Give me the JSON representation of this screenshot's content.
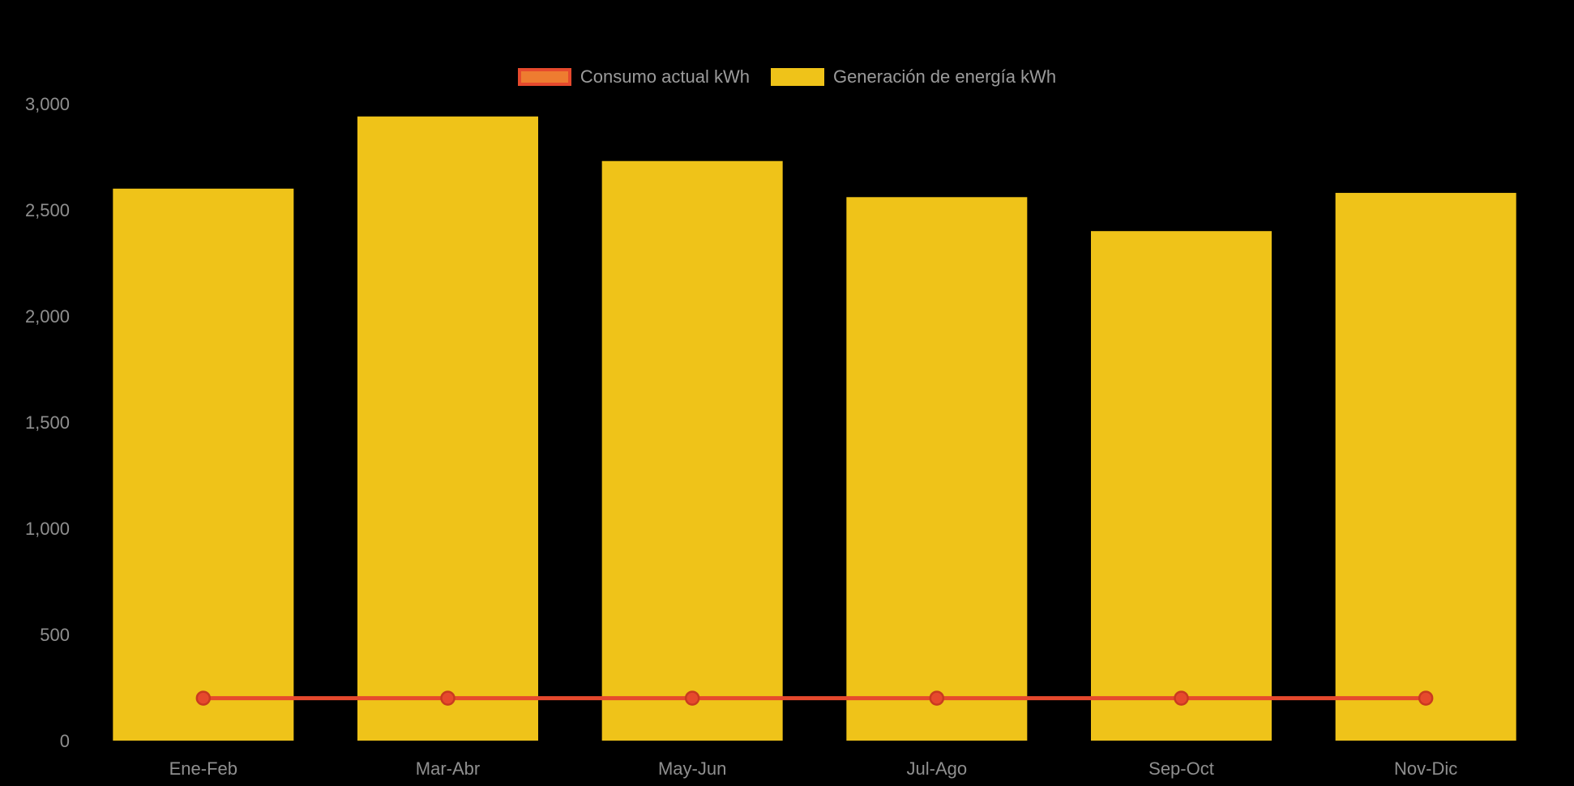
{
  "chart_data": {
    "type": "bar",
    "categories": [
      "Ene-Feb",
      "Mar-Abr",
      "May-Jun",
      "Jul-Ago",
      "Sep-Oct",
      "Nov-Dic"
    ],
    "series": [
      {
        "name": "Consumo actual kWh",
        "type": "line",
        "color": "#e6492d",
        "marker_fill": "#e6492d",
        "marker_stroke": "#c93a20",
        "values": [
          200,
          200,
          200,
          200,
          200,
          200
        ]
      },
      {
        "name": "Generación de energía kWh",
        "type": "bar",
        "color": "#efc319",
        "values": [
          2600,
          2940,
          2730,
          2560,
          2400,
          2580
        ]
      }
    ],
    "title": "",
    "xlabel": "",
    "ylabel": "",
    "ylim": [
      0,
      3000
    ],
    "yticks": [
      0,
      500,
      1000,
      1500,
      2000,
      2500,
      3000
    ],
    "ytick_labels": [
      "0",
      "500",
      "1,000",
      "1,500",
      "2,000",
      "2,500",
      "3,000"
    ],
    "grid": false,
    "legend_position": "top-center",
    "background": "#000000",
    "axis_text_color": "#8f8f8f",
    "legend_text_color": "#9b9b9b"
  }
}
